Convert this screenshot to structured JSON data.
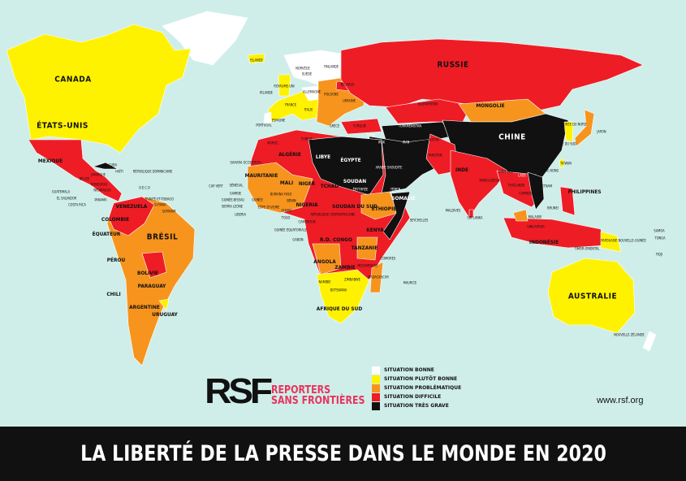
{
  "colors": {
    "ocean": "#cfeee9",
    "bonne": "#ffffff",
    "plutot_bonne": "#fff200",
    "problematique": "#f7941d",
    "difficile": "#ee1c25",
    "tres_grave": "#111111",
    "brand": "#e8335e"
  },
  "labels": {
    "canada": "CANADA",
    "etats_unis": "ÉTATS-UNIS",
    "mexique": "MEXIQUE",
    "cuba": "CUBA",
    "haiti": "HAÏTI",
    "rep_dom": "RÉPUBLIQUE DOMINICAINE",
    "jamaique": "JAMAÏQUE",
    "belize": "BELIZE",
    "honduras": "HONDURAS",
    "nicaragua": "NICARAGUA",
    "guatemala": "GUATEMALA",
    "el_salvador": "EL SALVADOR",
    "costa_rica": "COSTA RICA",
    "panama": "PANAMA",
    "oeco": "O.E.C.O",
    "trinite": "TRINITÉ-ET-TOBAGO",
    "guyana": "GUYANA",
    "surinam": "SURINAM",
    "venezuela": "VENEZUELA",
    "colombie": "COLOMBIE",
    "equateur": "ÉQUATEUR",
    "perou": "PÉROU",
    "bresil": "BRÉSIL",
    "bolivie": "BOLIVIE",
    "paraguay": "PARAGUAY",
    "chili": "CHILI",
    "argentine": "ARGENTINE",
    "uruguay": "URUGUAY",
    "islande": "ISLANDE",
    "norvege": "NORVÈGE",
    "suede": "SUÈDE",
    "finlande": "FINLANDE",
    "royaume_uni": "ROYAUME-UNI",
    "irlande": "IRLANDE",
    "france": "FRANCE",
    "espagne": "ESPAGNE",
    "portugal": "PORTUGAL",
    "allemagne": "ALLEMAGNE",
    "italie": "ITALIE",
    "pologne": "POLOGNE",
    "ukraine": "UKRAINE",
    "belarus": "BÉLARUS",
    "grece": "GRÈCE",
    "turquie": "TURQUIE",
    "russie": "RUSSIE",
    "kazakhstan": "KAZAKHSTAN",
    "mongolie": "MONGOLIE",
    "chine": "CHINE",
    "maroc": "MAROC",
    "algerie": "ALGÉRIE",
    "tunisie": "TUNISIE",
    "libye": "LIBYE",
    "egypte": "ÉGYPTE",
    "sahara": "SAHARA OCCIDENTAL",
    "mauritanie": "MAURITANIE",
    "mali": "MALI",
    "niger": "NIGER",
    "tchad": "TCHAD",
    "soudan": "SOUDAN",
    "erythree": "ÉRYTHRÉE",
    "senegal": "SÉNÉGAL",
    "cap_vert": "CAP VERT",
    "gambie": "GAMBIE",
    "guinee_bissau": "GUINÉE-BISSAU",
    "sierra_leone": "SIERRA LEONE",
    "liberia": "LIBERIA",
    "guinee": "GUINÉE",
    "cote_ivoire": "CÔTE D'IVOIRE",
    "burkina": "BURKINA FASO",
    "ghana": "GHANA",
    "togo": "TOGO",
    "benin": "BÉNIN",
    "nigeria": "NIGERIA",
    "cameroun": "CAMEROUN",
    "centrafrique": "RÉPUBLIQUE CENTRAFRICAINE",
    "soudan_sud": "SOUDAN DU SUD",
    "ethiopie": "ÉTHIOPIE",
    "somalie": "SOMALIE",
    "kenya": "KENYA",
    "rdc": "R.D. CONGO",
    "tanzanie": "TANZANIE",
    "angola": "ANGOLA",
    "zambie": "ZAMBIE",
    "namibie": "NAMIBIE",
    "botswana": "BOTSWANA",
    "afrique_sud": "AFRIQUE DU SUD",
    "madagascar": "MADAGASCAR",
    "mozambique": "MOZAMBIQUE",
    "zimbabwe": "ZIMBABWE",
    "guinee_eq": "GUINÉE ÉQUATORIALE",
    "gabon": "GABON",
    "comores": "COMORES",
    "maurice": "MAURICE",
    "seychelles": "SEYCHELLES",
    "syrie": "SYRIE",
    "irak": "IRAK",
    "iran": "IRAN",
    "arabie": "ARABIE SAOUDITE",
    "yemen": "YÉMEN",
    "oman": "OMAN",
    "turkmenistan": "TURKMÉNISTAN",
    "afghanistan": "AFGHANISTAN",
    "pakistan": "PAKISTAN",
    "inde": "INDE",
    "nepal": "NÉPAL",
    "bhoutan": "BHOUTAN",
    "bangladesh": "BANGLADESH",
    "sri_lanka": "SRI LANKA",
    "maldives": "MALDIVES",
    "birmanie": "BIRMANIE",
    "thailande": "THAÏLANDE",
    "laos": "LAOS",
    "cambodge": "CAMBODGE",
    "vietnam": "VIETNAM",
    "hong_kong": "HONG KONG",
    "taiwan": "TAÏWAN",
    "coree_nord": "CORÉE DU NORD",
    "coree_sud": "CORÉE DU SUD",
    "japon": "JAPON",
    "philippines": "PHILIPPINES",
    "malaisie": "MALAISIE",
    "brunei": "BRUNEI",
    "singapour": "SINGAPOUR",
    "indonesie": "INDONÉSIE",
    "timor": "TIMOR-ORIENTAL",
    "papouasie": "PAPOUASIE NOUVELLE-GUINÉE",
    "australie": "AUSTRALIE",
    "nz": "NOUVELLE-ZÉLANDE",
    "samoa": "SAMOA",
    "tonga": "TONGA",
    "fidji": "FIDJI"
  },
  "logo": {
    "mark": "RSF",
    "line1": "REPORTERS",
    "line2": "SANS FRONTIÈRES"
  },
  "legend": [
    {
      "label": "SITUATION BONNE",
      "color": "#ffffff"
    },
    {
      "label": "SITUATION PLUTÔT BONNE",
      "color": "#fff200"
    },
    {
      "label": "SITUATION PROBLÉMATIQUE",
      "color": "#f7941d"
    },
    {
      "label": "SITUATION DIFFICILE",
      "color": "#ee1c25"
    },
    {
      "label": "SITUATION TRÈS GRAVE",
      "color": "#111111"
    }
  ],
  "url": "www.rsf.org",
  "title": "LA LIBERTÉ DE LA PRESSE DANS LE MONDE EN 2020"
}
